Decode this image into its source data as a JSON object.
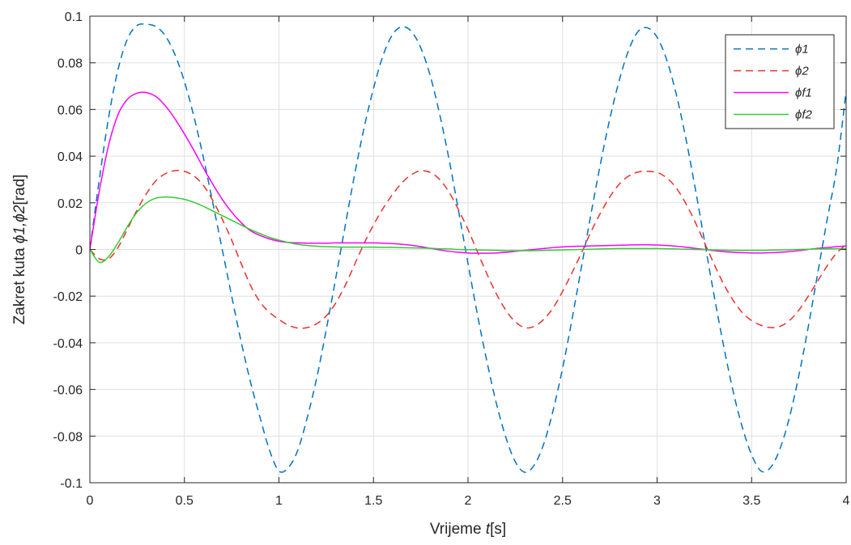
{
  "chart_data": {
    "type": "line",
    "title": "",
    "xlabel": {
      "prefix": "Vrijeme ",
      "var": "t",
      "suffix": "[s]"
    },
    "ylabel": {
      "prefix": "Zakret kuta ",
      "var": "ϕ1,ϕ2",
      "suffix": "[rad]"
    },
    "xlim": [
      0,
      4
    ],
    "ylim": [
      -0.1,
      0.1
    ],
    "xticks": [
      0,
      0.5,
      1,
      1.5,
      2,
      2.5,
      3,
      3.5,
      4
    ],
    "xtick_labels": [
      "0",
      "0.5",
      "1",
      "1.5",
      "2",
      "2.5",
      "3",
      "3.5",
      "4"
    ],
    "yticks": [
      -0.1,
      -0.08,
      -0.06,
      -0.04,
      -0.02,
      0,
      0.02,
      0.04,
      0.06,
      0.08,
      0.1
    ],
    "ytick_labels": [
      "-0.1",
      "-0.08",
      "-0.06",
      "-0.04",
      "-0.02",
      "0",
      "0.02",
      "0.04",
      "0.06",
      "0.08",
      "0.1"
    ],
    "grid": true,
    "legend_position": "top-right",
    "x": [
      0,
      0.05,
      0.1,
      0.15,
      0.2,
      0.25,
      0.3,
      0.35,
      0.4,
      0.45,
      0.5,
      0.55,
      0.6,
      0.65,
      0.7,
      0.75,
      0.8,
      0.85,
      0.9,
      0.95,
      1.0,
      1.05,
      1.1,
      1.15,
      1.2,
      1.25,
      1.3,
      1.35,
      1.4,
      1.45,
      1.5,
      1.55,
      1.6,
      1.65,
      1.7,
      1.75,
      1.8,
      1.85,
      1.9,
      1.95,
      2.0,
      2.05,
      2.1,
      2.15,
      2.2,
      2.25,
      2.3,
      2.35,
      2.4,
      2.45,
      2.5,
      2.55,
      2.6,
      2.65,
      2.7,
      2.75,
      2.8,
      2.85,
      2.9,
      2.95,
      3.0,
      3.05,
      3.1,
      3.15,
      3.2,
      3.25,
      3.3,
      3.35,
      3.4,
      3.45,
      3.5,
      3.55,
      3.6,
      3.65,
      3.7,
      3.75,
      3.8,
      3.85,
      3.9,
      3.95,
      4.0
    ],
    "series": [
      {
        "name": "ϕ1",
        "color": "#0072BD",
        "dash": "dashed",
        "values": [
          0,
          0.03,
          0.057,
          0.0775,
          0.0905,
          0.096,
          0.0965,
          0.0955,
          0.0915,
          0.0835,
          0.072,
          0.057,
          0.0395,
          0.02,
          0.0,
          -0.02,
          -0.0395,
          -0.057,
          -0.072,
          -0.086,
          -0.095,
          -0.0935,
          -0.086,
          -0.072,
          -0.055,
          -0.0345,
          -0.0125,
          0.01,
          0.032,
          0.052,
          0.069,
          0.083,
          0.092,
          0.0955,
          0.0935,
          0.0865,
          0.0745,
          0.058,
          0.0385,
          0.0165,
          -0.006,
          -0.028,
          -0.048,
          -0.066,
          -0.0805,
          -0.091,
          -0.0955,
          -0.0925,
          -0.0835,
          -0.069,
          -0.051,
          -0.03,
          -0.0075,
          0.015,
          0.0365,
          0.056,
          0.0725,
          0.0855,
          0.0935,
          0.095,
          0.091,
          0.0815,
          0.067,
          0.0485,
          0.027,
          0.004,
          -0.019,
          -0.0405,
          -0.06,
          -0.076,
          -0.088,
          -0.095,
          -0.0935,
          -0.0855,
          -0.072,
          -0.054,
          -0.033,
          -0.01,
          0.013,
          0.035,
          0.068
        ]
      },
      {
        "name": "ϕ2",
        "color": "#E8312B",
        "dash": "dashed",
        "values": [
          0,
          -0.004,
          -0.004,
          0.001,
          0.009,
          0.017,
          0.024,
          0.0295,
          0.0325,
          0.0338,
          0.0335,
          0.0315,
          0.0275,
          0.021,
          0.013,
          0.004,
          -0.006,
          -0.0155,
          -0.0225,
          -0.027,
          -0.03,
          -0.0325,
          -0.0337,
          -0.0335,
          -0.0318,
          -0.0285,
          -0.023,
          -0.0155,
          -0.0065,
          0.0025,
          0.0105,
          0.0175,
          0.0235,
          0.0285,
          0.032,
          0.0337,
          0.033,
          0.03,
          0.0245,
          0.017,
          0.0085,
          -0.001,
          -0.0105,
          -0.019,
          -0.026,
          -0.031,
          -0.0335,
          -0.033,
          -0.03,
          -0.025,
          -0.018,
          -0.01,
          -0.0015,
          0.0075,
          0.0155,
          0.0225,
          0.028,
          0.0315,
          0.0332,
          0.0335,
          0.033,
          0.0308,
          0.0265,
          0.02,
          0.012,
          0.003,
          -0.006,
          -0.0145,
          -0.0215,
          -0.027,
          -0.0305,
          -0.0325,
          -0.0335,
          -0.033,
          -0.0305,
          -0.026,
          -0.02,
          -0.0135,
          -0.007,
          -0.0015,
          0.002
        ]
      },
      {
        "name": "ϕf1",
        "color": "#FF00FF",
        "dash": "solid",
        "values": [
          0,
          0.025,
          0.045,
          0.058,
          0.0645,
          0.067,
          0.0672,
          0.0655,
          0.0615,
          0.056,
          0.0495,
          0.0425,
          0.035,
          0.028,
          0.0215,
          0.016,
          0.0115,
          0.008,
          0.006,
          0.0045,
          0.0035,
          0.003,
          0.0028,
          0.0027,
          0.0027,
          0.0027,
          0.0028,
          0.0028,
          0.0028,
          0.0028,
          0.0028,
          0.0027,
          0.0025,
          0.0022,
          0.0018,
          0.0012,
          0.0005,
          -0.0002,
          -0.0008,
          -0.0012,
          -0.0015,
          -0.0016,
          -0.0016,
          -0.0015,
          -0.0012,
          -0.0008,
          -0.0004,
          0.0,
          0.0004,
          0.0008,
          0.0011,
          0.0013,
          0.0014,
          0.0015,
          0.0016,
          0.0017,
          0.0018,
          0.0019,
          0.002,
          0.002,
          0.0019,
          0.0017,
          0.0014,
          0.001,
          0.0005,
          0.0,
          -0.0005,
          -0.0009,
          -0.0012,
          -0.0014,
          -0.0015,
          -0.0015,
          -0.0014,
          -0.0012,
          -0.0009,
          -0.0005,
          0.0,
          0.0005,
          0.0008,
          0.0012,
          0.0015
        ]
      },
      {
        "name": "ϕf2",
        "color": "#33CC33",
        "dash": "solid",
        "values": [
          0,
          -0.0055,
          -0.003,
          0.003,
          0.01,
          0.016,
          0.02,
          0.022,
          0.0225,
          0.0222,
          0.0215,
          0.0202,
          0.0185,
          0.0165,
          0.0145,
          0.0125,
          0.0105,
          0.0085,
          0.0068,
          0.0052,
          0.004,
          0.003,
          0.0022,
          0.0017,
          0.0014,
          0.0012,
          0.0011,
          0.001,
          0.001,
          0.001,
          0.001,
          0.0009,
          0.0009,
          0.0008,
          0.0007,
          0.0006,
          0.0005,
          0.0003,
          0.0002,
          0.0,
          -0.0001,
          -0.0002,
          -0.0003,
          -0.0004,
          -0.0005,
          -0.0005,
          -0.0005,
          -0.0005,
          -0.0004,
          -0.0003,
          -0.0002,
          -0.0001,
          0.0,
          0.0001,
          0.0002,
          0.0003,
          0.0004,
          0.0004,
          0.0004,
          0.0004,
          0.0004,
          0.0003,
          0.0002,
          0.0001,
          0.0,
          -0.0001,
          -0.0002,
          -0.0003,
          -0.0004,
          -0.0004,
          -0.0004,
          -0.0004,
          -0.0003,
          -0.0002,
          -0.0001,
          0.0,
          0.0001,
          0.0002,
          0.0002,
          0.0003,
          0.0003
        ]
      }
    ]
  }
}
